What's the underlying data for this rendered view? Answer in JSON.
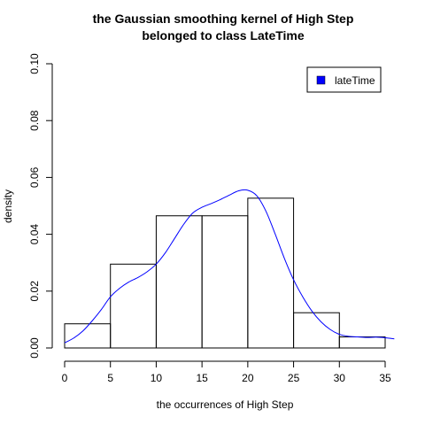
{
  "chart_data": {
    "type": "bar",
    "subtype": "histogram-with-density",
    "title": "the Gaussian smoothing kernel of High Step",
    "subtitle": "belonged to class LateTime",
    "xlabel": "the occurrences of High Step",
    "ylabel": "density",
    "xlim": [
      -1,
      36.5
    ],
    "ylim": [
      0,
      0.1
    ],
    "x_ticks": [
      "0",
      "5",
      "10",
      "15",
      "20",
      "25",
      "30",
      "35"
    ],
    "y_ticks": [
      "0.00",
      "0.02",
      "0.04",
      "0.06",
      "0.08",
      "0.10"
    ],
    "bins": [
      {
        "start": 0,
        "end": 5,
        "density": 0.0085
      },
      {
        "start": 5,
        "end": 10,
        "density": 0.0295
      },
      {
        "start": 10,
        "end": 15,
        "density": 0.0465
      },
      {
        "start": 15,
        "end": 20,
        "density": 0.0465
      },
      {
        "start": 20,
        "end": 25,
        "density": 0.0527
      },
      {
        "start": 25,
        "end": 30,
        "density": 0.0124
      },
      {
        "start": 30,
        "end": 35,
        "density": 0.0039
      }
    ],
    "density_curve": {
      "name": "lateTime",
      "color": "#0000ff",
      "x": [
        -1.5,
        0,
        1,
        2,
        3,
        4,
        5,
        6,
        7,
        8,
        9,
        10,
        11,
        12,
        13,
        14,
        15,
        16,
        17,
        18,
        19,
        20,
        21,
        22,
        23,
        24,
        25,
        26,
        27,
        28,
        29,
        30,
        31,
        32,
        33,
        34,
        35,
        36,
        37
      ],
      "y": [
        0.0005,
        0.0018,
        0.0035,
        0.006,
        0.0095,
        0.0135,
        0.018,
        0.021,
        0.0232,
        0.0248,
        0.0268,
        0.0295,
        0.0335,
        0.0385,
        0.0435,
        0.0475,
        0.0495,
        0.0508,
        0.0522,
        0.0538,
        0.0553,
        0.0555,
        0.0535,
        0.048,
        0.04,
        0.0315,
        0.024,
        0.018,
        0.013,
        0.0092,
        0.0065,
        0.0048,
        0.0041,
        0.0039,
        0.0037,
        0.0038,
        0.0036,
        0.0032,
        0.0026
      ]
    },
    "grid": false,
    "legend": {
      "placement": "top-right",
      "entries": [
        {
          "label": "lateTime",
          "color": "#0000ff"
        }
      ]
    }
  }
}
